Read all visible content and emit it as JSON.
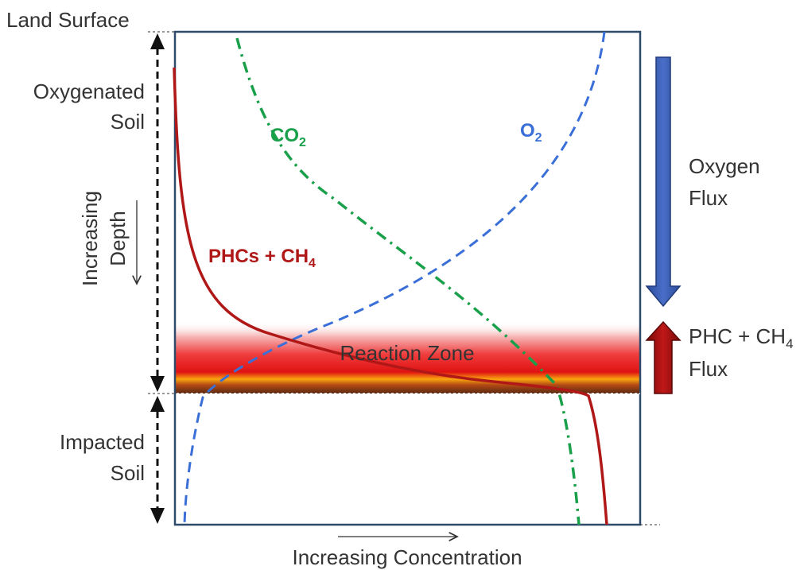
{
  "labels": {
    "land_surface": "Land Surface",
    "oxygenated_line1": "Oxygenated",
    "oxygenated_line2": "Soil",
    "increasing": "Increasing",
    "depth": "Depth",
    "impacted_line1": "Impacted",
    "impacted_line2": "Soil",
    "x_axis": "Increasing Concentration",
    "reaction_zone": "Reaction Zone",
    "oxygen_flux_line1": "Oxygen",
    "oxygen_flux_line2": "Flux",
    "phc_flux_line1_prefix": "PHC + CH",
    "phc_flux_line1_sub": "4",
    "phc_flux_line2": "Flux"
  },
  "curves": {
    "co2": {
      "prefix": "CO",
      "sub": "2",
      "color": "#1aa04a"
    },
    "o2": {
      "prefix": "O",
      "sub": "2",
      "color": "#3a6fd8"
    },
    "phc": {
      "prefix": "PHCs + CH",
      "sub": "4",
      "color": "#b01818"
    }
  },
  "colors": {
    "frame": "#2f4a6b",
    "oxygen_arrow": "#3c5fb8",
    "phc_arrow": "#a80e0e",
    "text": "#333333"
  }
}
